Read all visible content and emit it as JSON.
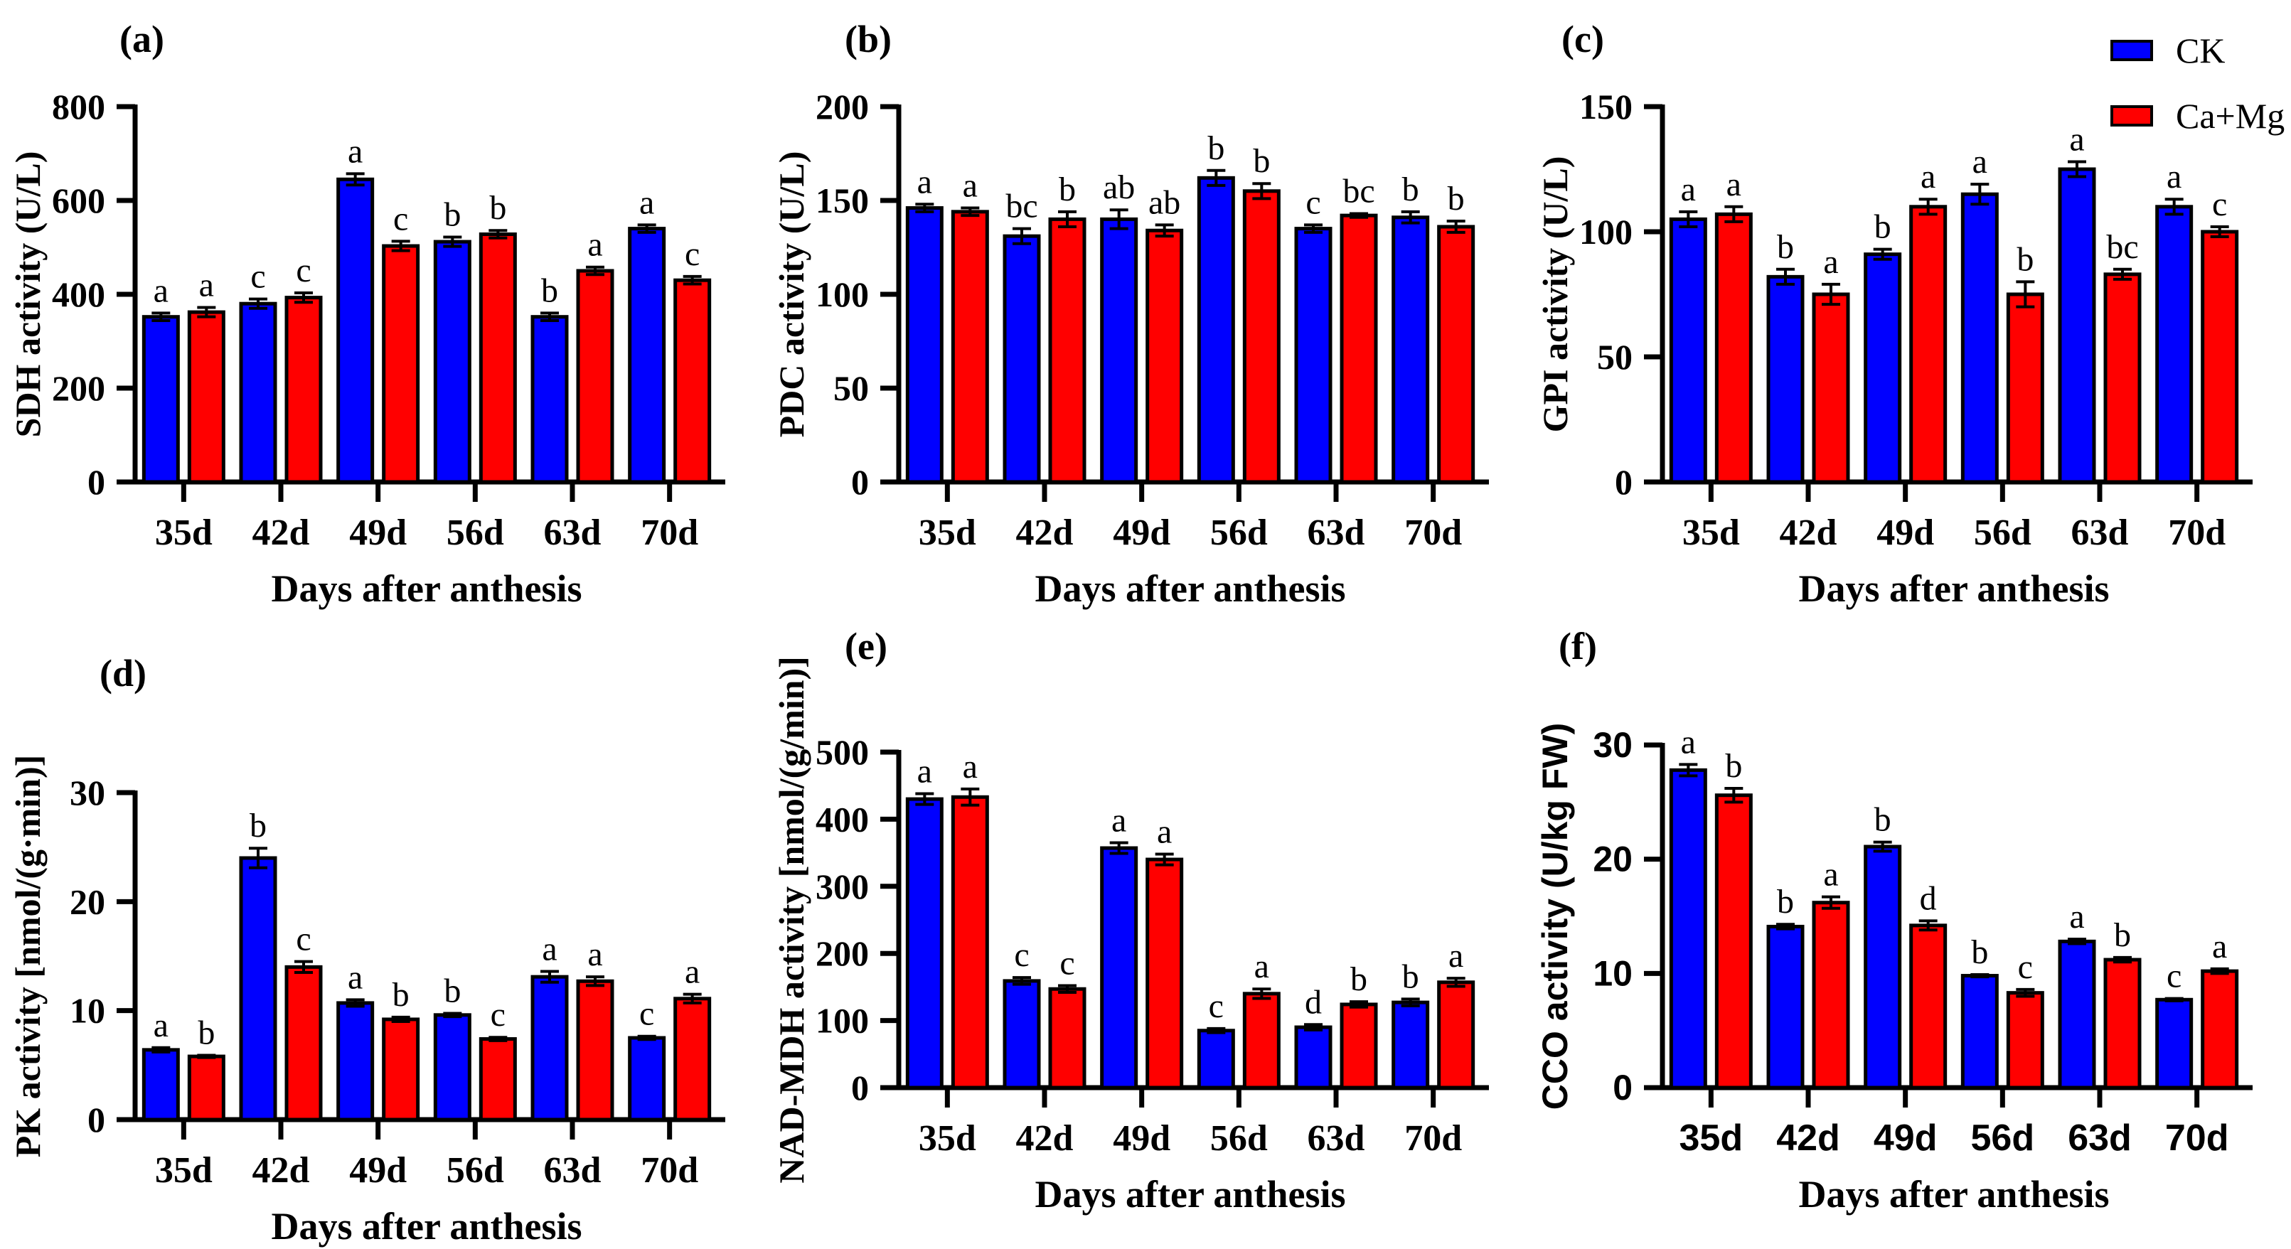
{
  "figure": {
    "xlabel": "Days after anthesis",
    "categories": [
      "35d",
      "42d",
      "49d",
      "56d",
      "63d",
      "70d"
    ]
  },
  "legend": {
    "position": "top-right",
    "items": [
      {
        "label": "CK",
        "color": "#0000FF"
      },
      {
        "label": "Ca+Mg",
        "color": "#FF0000"
      }
    ]
  },
  "chart_data": [
    {
      "type": "bar",
      "panel_label": "(a)",
      "ylabel": "SDH activity (U/L)",
      "xlabel": "Days after anthesis",
      "categories": [
        "35d",
        "42d",
        "49d",
        "56d",
        "63d",
        "70d"
      ],
      "ylim": [
        0,
        800
      ],
      "yticks": [
        0,
        200,
        400,
        600,
        800
      ],
      "grid": false,
      "series": [
        {
          "name": "CK",
          "color": "#0000FF",
          "values": [
            352,
            380,
            645,
            512,
            352,
            540
          ],
          "errors": [
            8,
            10,
            12,
            10,
            8,
            8
          ],
          "letters": [
            "a",
            "c",
            "a",
            "b",
            "b",
            "a"
          ]
        },
        {
          "name": "Ca+Mg",
          "color": "#FF0000",
          "values": [
            362,
            393,
            503,
            528,
            450,
            430
          ],
          "errors": [
            10,
            10,
            10,
            8,
            8,
            8
          ],
          "letters": [
            "a",
            "c",
            "c",
            "b",
            "a",
            "c"
          ]
        }
      ]
    },
    {
      "type": "bar",
      "panel_label": "(b)",
      "ylabel": "PDC activity (U/L)",
      "xlabel": "Days after anthesis",
      "categories": [
        "35d",
        "42d",
        "49d",
        "56d",
        "63d",
        "70d"
      ],
      "ylim": [
        0,
        200
      ],
      "yticks": [
        0,
        50,
        100,
        150,
        200
      ],
      "grid": false,
      "series": [
        {
          "name": "CK",
          "color": "#0000FF",
          "values": [
            146,
            131,
            140,
            162,
            135,
            141
          ],
          "errors": [
            2,
            4,
            5,
            4,
            2,
            3
          ],
          "letters": [
            "a",
            "bc",
            "ab",
            "b",
            "c",
            "b"
          ]
        },
        {
          "name": "Ca+Mg",
          "color": "#FF0000",
          "values": [
            144,
            140,
            134,
            155,
            142,
            136
          ],
          "errors": [
            2,
            4,
            3,
            4,
            1,
            3
          ],
          "letters": [
            "a",
            "b",
            "ab",
            "b",
            "bc",
            "b"
          ]
        }
      ]
    },
    {
      "type": "bar",
      "panel_label": "(c)",
      "ylabel": "GPI activity (U/L)",
      "xlabel": "Days after anthesis",
      "categories": [
        "35d",
        "42d",
        "49d",
        "56d",
        "63d",
        "70d"
      ],
      "ylim": [
        0,
        150
      ],
      "yticks": [
        0,
        50,
        100,
        150
      ],
      "grid": false,
      "series": [
        {
          "name": "CK",
          "color": "#0000FF",
          "values": [
            105,
            82,
            91,
            115,
            125,
            110
          ],
          "errors": [
            3,
            3,
            2,
            4,
            3,
            3
          ],
          "letters": [
            "a",
            "b",
            "b",
            "a",
            "a",
            "a"
          ]
        },
        {
          "name": "Ca+Mg",
          "color": "#FF0000",
          "values": [
            107,
            75,
            110,
            75,
            83,
            100
          ],
          "errors": [
            3,
            4,
            3,
            5,
            2,
            2
          ],
          "letters": [
            "a",
            "a",
            "a",
            "b",
            "bc",
            "c"
          ]
        }
      ]
    },
    {
      "type": "bar",
      "panel_label": "(d)",
      "ylabel": "PK activity [nmol/(g·min)]",
      "xlabel": "Days after anthesis",
      "categories": [
        "35d",
        "42d",
        "49d",
        "56d",
        "63d",
        "70d"
      ],
      "ylim": [
        0,
        30
      ],
      "yticks": [
        0,
        10,
        20,
        30
      ],
      "grid": false,
      "series": [
        {
          "name": "CK",
          "color": "#0000FF",
          "values": [
            6.4,
            24,
            10.7,
            9.6,
            13.1,
            7.5
          ],
          "errors": [
            0.2,
            0.9,
            0.3,
            0.15,
            0.5,
            0.15
          ],
          "letters": [
            "a",
            "b",
            "a",
            "b",
            "a",
            "c"
          ]
        },
        {
          "name": "Ca+Mg",
          "color": "#FF0000",
          "values": [
            5.8,
            14,
            9.2,
            7.4,
            12.7,
            11.1
          ],
          "errors": [
            0.1,
            0.5,
            0.2,
            0.15,
            0.4,
            0.4
          ],
          "letters": [
            "b",
            "c",
            "b",
            "c",
            "a",
            "a"
          ]
        }
      ]
    },
    {
      "type": "bar",
      "panel_label": "(e)",
      "ylabel": "NAD-MDH activity [nmol/(g/min)]",
      "xlabel": "Days after anthesis",
      "categories": [
        "35d",
        "42d",
        "49d",
        "56d",
        "63d",
        "70d"
      ],
      "ylim": [
        0,
        500
      ],
      "yticks": [
        0,
        100,
        200,
        300,
        400,
        500
      ],
      "grid": false,
      "series": [
        {
          "name": "CK",
          "color": "#0000FF",
          "values": [
            430,
            159,
            357,
            85,
            90,
            127
          ],
          "errors": [
            8,
            5,
            8,
            3,
            4,
            5
          ],
          "letters": [
            "a",
            "c",
            "a",
            "c",
            "d",
            "b"
          ]
        },
        {
          "name": "Ca+Mg",
          "color": "#FF0000",
          "values": [
            433,
            147,
            340,
            140,
            124,
            157
          ],
          "errors": [
            12,
            5,
            8,
            7,
            4,
            6
          ],
          "letters": [
            "a",
            "c",
            "a",
            "a",
            "b",
            "a"
          ]
        }
      ]
    },
    {
      "type": "bar",
      "panel_label": "(f)",
      "ylabel": "CCO activity (U/kg FW)",
      "xlabel": "Days after anthesis",
      "categories": [
        "35d",
        "42d",
        "49d",
        "56d",
        "63d",
        "70d"
      ],
      "ylim": [
        0,
        30
      ],
      "yticks": [
        0,
        10,
        20,
        30
      ],
      "grid": false,
      "series": [
        {
          "name": "CK",
          "color": "#0000FF",
          "values": [
            27.8,
            14.1,
            21.1,
            9.8,
            12.8,
            7.7
          ],
          "errors": [
            0.5,
            0.2,
            0.4,
            0.1,
            0.2,
            0.1
          ],
          "letters": [
            "a",
            "b",
            "b",
            "b",
            "a",
            "c"
          ]
        },
        {
          "name": "Ca+Mg",
          "color": "#FF0000",
          "values": [
            25.6,
            16.2,
            14.2,
            8.3,
            11.2,
            10.2
          ],
          "errors": [
            0.6,
            0.5,
            0.4,
            0.3,
            0.2,
            0.2
          ],
          "letters": [
            "b",
            "a",
            "d",
            "c",
            "b",
            "a"
          ]
        }
      ]
    }
  ]
}
